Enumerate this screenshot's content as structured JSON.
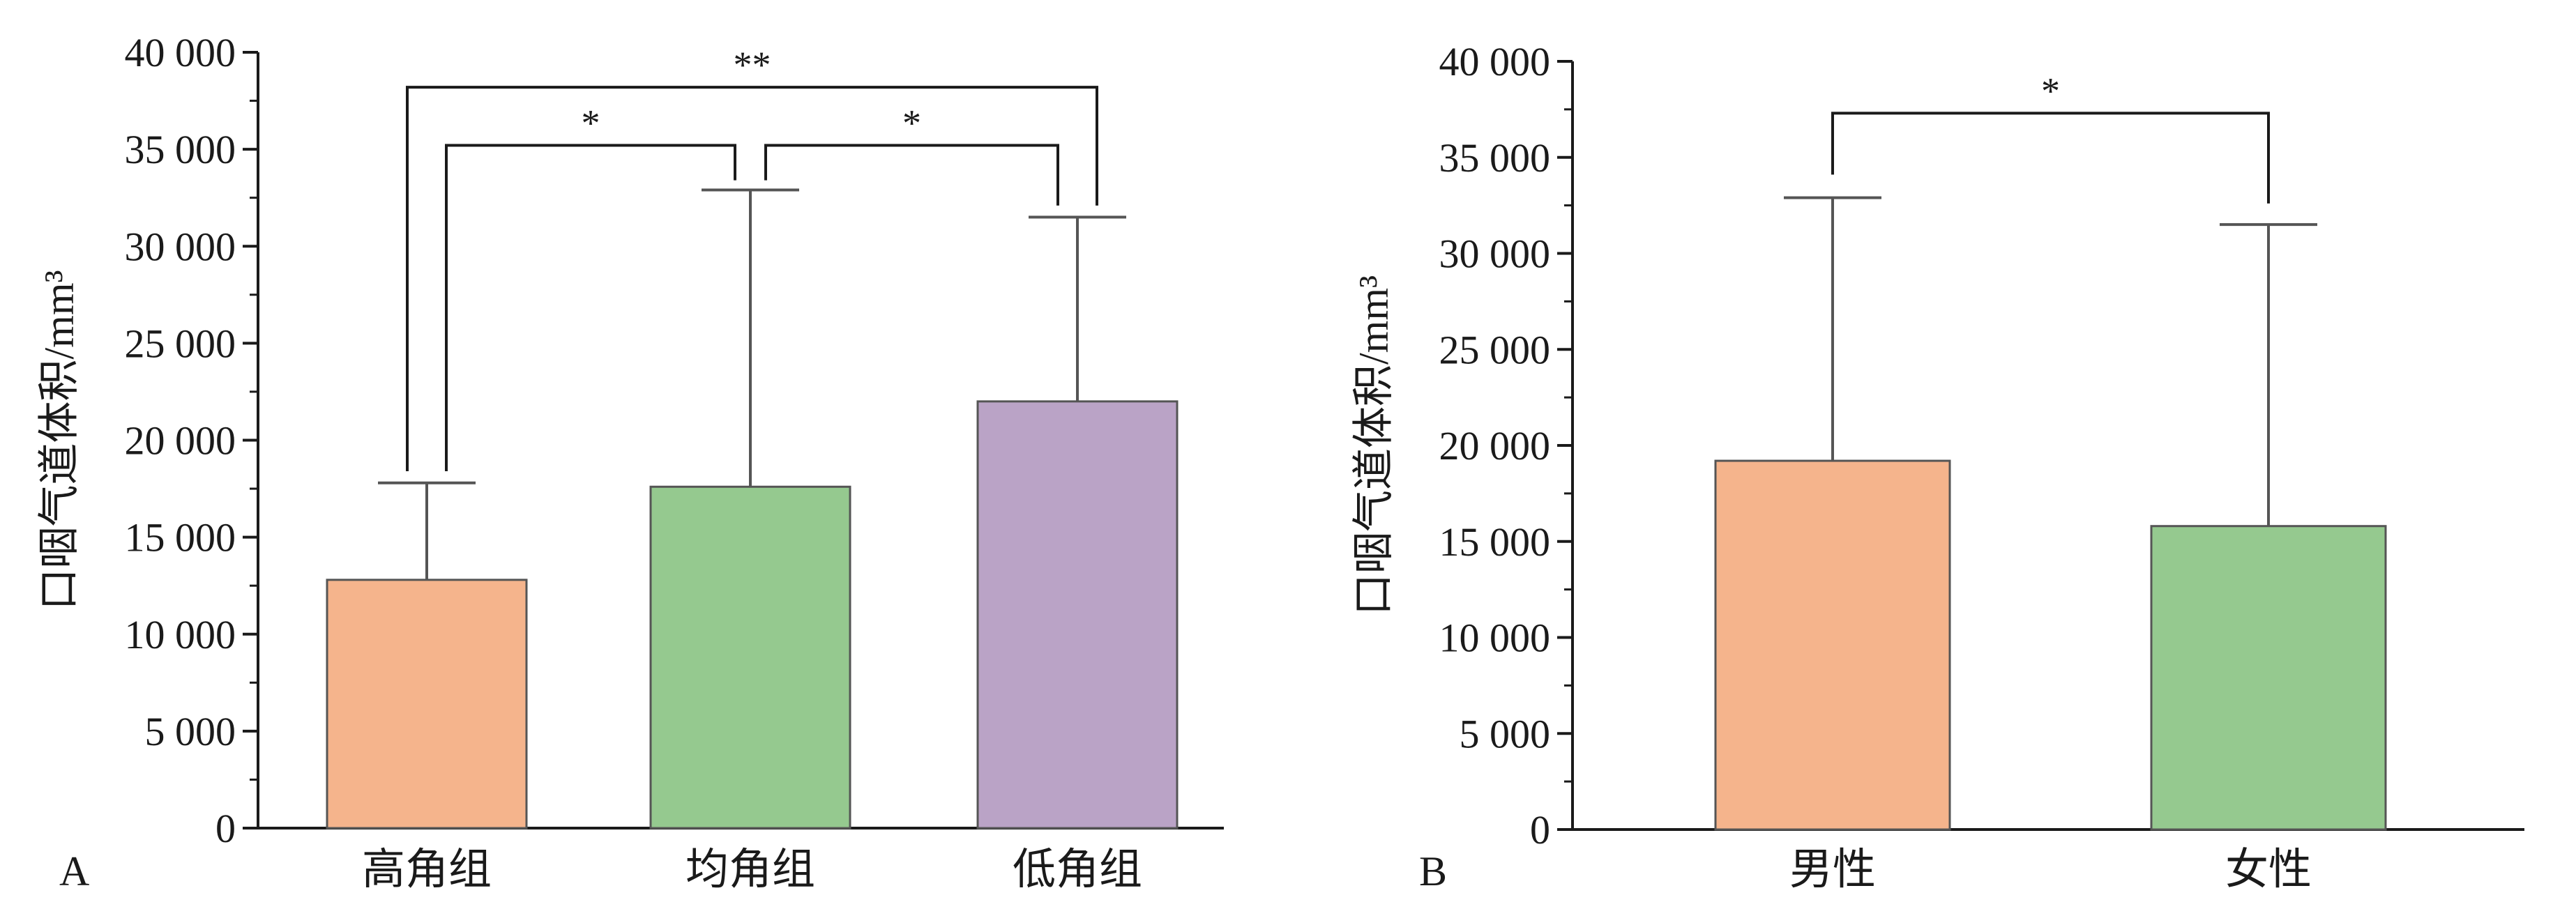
{
  "chart_data": [
    {
      "panel": "A",
      "type": "bar",
      "ylabel": "口咽气道体积/mm³",
      "categories": [
        "高角组",
        "均角组",
        "低角组"
      ],
      "values": [
        12800,
        17600,
        22000
      ],
      "error_upper": [
        17800,
        32900,
        31500
      ],
      "colors": [
        "#F5B48C",
        "#95C98F",
        "#BAA3C6"
      ],
      "ylim": [
        0,
        40000
      ],
      "yticks": [
        0,
        5000,
        10000,
        15000,
        20000,
        25000,
        30000,
        35000,
        40000
      ],
      "ytick_labels": [
        "0",
        "5 000",
        "10 000",
        "15 000",
        "20 000",
        "25 000",
        "30 000",
        "35 000",
        "40 000"
      ],
      "significance": [
        {
          "from": 0,
          "to": 2,
          "label": "**",
          "y": 38200
        },
        {
          "from": 0,
          "to": 1,
          "label": "*",
          "y": 35200
        },
        {
          "from": 1,
          "to": 2,
          "label": "*",
          "y": 35200
        }
      ]
    },
    {
      "panel": "B",
      "type": "bar",
      "ylabel": "口咽气道体积/mm³",
      "categories": [
        "男性",
        "女性"
      ],
      "values": [
        19200,
        15800
      ],
      "error_upper": [
        32900,
        31500
      ],
      "colors": [
        "#F5B48C",
        "#95C98F"
      ],
      "ylim": [
        0,
        40000
      ],
      "yticks": [
        0,
        5000,
        10000,
        15000,
        20000,
        25000,
        30000,
        35000,
        40000
      ],
      "ytick_labels": [
        "0",
        "5 000",
        "10 000",
        "15 000",
        "20 000",
        "25 000",
        "30 000",
        "35 000",
        "40 000"
      ],
      "significance": [
        {
          "from": 0,
          "to": 1,
          "label": "*",
          "y": 37300
        }
      ]
    }
  ]
}
